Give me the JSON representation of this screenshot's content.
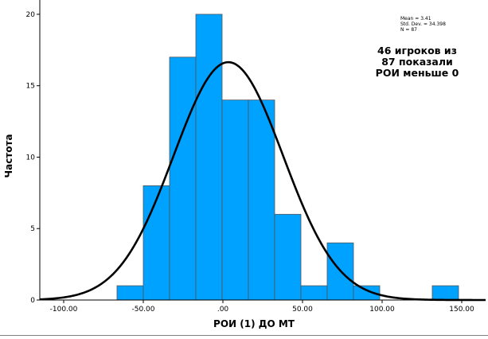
{
  "chart_data": {
    "type": "bar",
    "subtype": "histogram",
    "xlabel": "РОИ (1) ДО МТ",
    "ylabel": "Частота",
    "xlim": [
      -115,
      165
    ],
    "ylim": [
      0,
      21
    ],
    "x_ticks": [
      -100,
      -50,
      0,
      50,
      100,
      150
    ],
    "x_tick_labels": [
      "-100.00",
      "-50.00",
      ".00",
      "50.00",
      "100.00",
      "150.00"
    ],
    "y_ticks": [
      0,
      5,
      10,
      15,
      20
    ],
    "y_tick_labels": [
      "0",
      "5",
      "10",
      "15",
      "20"
    ],
    "bin_width": 16.5,
    "bins": [
      {
        "start": -66.5,
        "count": 1
      },
      {
        "start": -50,
        "count": 8
      },
      {
        "start": -33.5,
        "count": 17
      },
      {
        "start": -17,
        "count": 20
      },
      {
        "start": -0.5,
        "count": 14
      },
      {
        "start": 16,
        "count": 14
      },
      {
        "start": 32.5,
        "count": 6
      },
      {
        "start": 49,
        "count": 1
      },
      {
        "start": 65.5,
        "count": 4
      },
      {
        "start": 82,
        "count": 1
      },
      {
        "start": 131.5,
        "count": 1
      }
    ],
    "normal_curve": {
      "mean": 3.41,
      "sd": 34.398,
      "n": 87
    },
    "stats_lines": [
      "Mean = 3.41",
      "Std. Dev. = 34.398",
      "N = 87"
    ],
    "annotation_lines": [
      "46 игроков из",
      "87 показали",
      "РОИ меньше 0"
    ],
    "colors": {
      "bar_fill": "#00a2ff",
      "bar_stroke": "#555555",
      "curve": "#000000",
      "axis": "#000000"
    }
  }
}
